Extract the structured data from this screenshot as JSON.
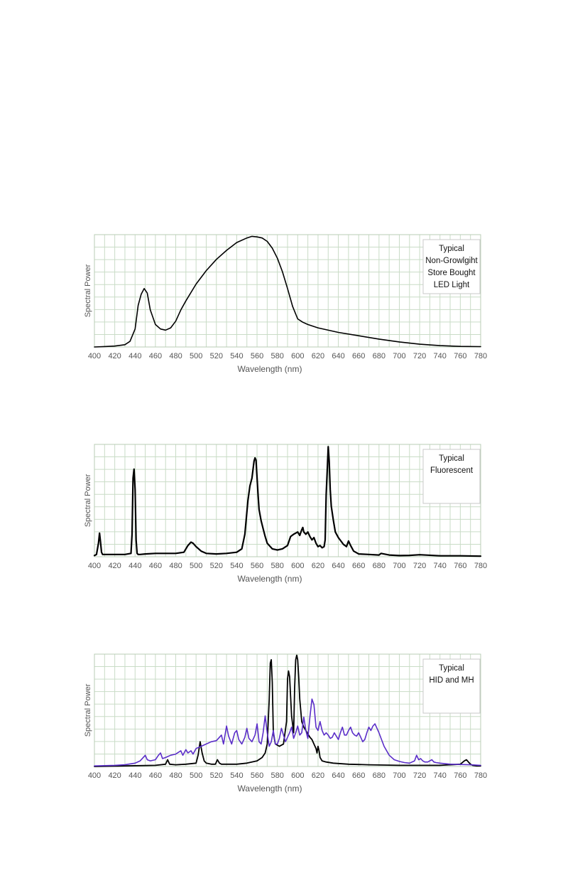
{
  "chart_data": [
    {
      "type": "line",
      "xlabel": "Wavelength (nm)",
      "ylabel": "Spectral Power",
      "xlim": [
        400,
        780
      ],
      "ylim": [
        0,
        1
      ],
      "x_ticks": [
        400,
        420,
        440,
        460,
        480,
        500,
        520,
        540,
        560,
        580,
        600,
        620,
        640,
        660,
        680,
        700,
        720,
        740,
        760,
        780
      ],
      "grid": true,
      "legend_position": "top-right",
      "legend_lines": [
        "Typical",
        "Non-Growlgiht",
        "Store Bought",
        "LED Light"
      ],
      "series": [
        {
          "color": "#000000",
          "x": [
            400,
            410,
            420,
            430,
            435,
            440,
            443,
            446,
            449,
            452,
            455,
            460,
            465,
            470,
            475,
            480,
            485,
            490,
            500,
            510,
            520,
            530,
            540,
            550,
            555,
            560,
            565,
            570,
            575,
            580,
            585,
            590,
            595,
            600,
            605,
            610,
            620,
            640,
            660,
            680,
            700,
            720,
            740,
            760,
            780
          ],
          "values": [
            0,
            0.004,
            0.008,
            0.02,
            0.05,
            0.16,
            0.37,
            0.47,
            0.52,
            0.48,
            0.33,
            0.2,
            0.16,
            0.15,
            0.17,
            0.23,
            0.33,
            0.41,
            0.56,
            0.68,
            0.78,
            0.86,
            0.93,
            0.97,
            0.985,
            0.98,
            0.97,
            0.94,
            0.88,
            0.79,
            0.67,
            0.52,
            0.36,
            0.25,
            0.22,
            0.2,
            0.17,
            0.13,
            0.1,
            0.07,
            0.045,
            0.025,
            0.012,
            0.005,
            0.003
          ]
        }
      ]
    },
    {
      "type": "line",
      "xlabel": "Wavelength (nm)",
      "ylabel": "Spectral Power",
      "xlim": [
        400,
        780
      ],
      "ylim": [
        0,
        1
      ],
      "x_ticks": [
        400,
        420,
        440,
        460,
        480,
        500,
        520,
        540,
        560,
        580,
        600,
        620,
        640,
        660,
        680,
        700,
        720,
        740,
        760,
        780
      ],
      "grid": true,
      "legend_position": "top-right",
      "legend_lines": [
        "Typical",
        "Fluorescent"
      ],
      "series": [
        {
          "color": "#000000",
          "x": [
            400,
            402,
            404,
            405,
            406,
            407,
            408,
            410,
            420,
            430,
            436,
            437,
            438,
            439,
            440,
            441,
            442,
            443,
            445,
            450,
            460,
            470,
            480,
            488,
            492,
            495,
            497,
            500,
            505,
            510,
            520,
            530,
            540,
            545,
            548,
            551,
            553,
            555,
            557,
            558,
            559,
            560,
            561,
            562,
            564,
            566,
            568,
            570,
            575,
            580,
            585,
            590,
            593,
            596,
            598,
            600,
            602,
            604,
            605,
            606,
            608,
            610,
            612,
            614,
            616,
            618,
            620,
            622,
            624,
            626,
            627,
            628,
            629,
            630,
            631,
            632,
            633,
            635,
            637,
            640,
            645,
            648,
            650,
            652,
            655,
            660,
            670,
            680,
            682,
            690,
            700,
            710,
            720,
            740,
            760,
            780
          ],
          "values": [
            0.01,
            0.02,
            0.12,
            0.21,
            0.13,
            0.04,
            0.02,
            0.02,
            0.02,
            0.02,
            0.03,
            0.2,
            0.7,
            0.78,
            0.6,
            0.15,
            0.03,
            0.02,
            0.02,
            0.025,
            0.03,
            0.03,
            0.03,
            0.04,
            0.1,
            0.13,
            0.12,
            0.09,
            0.05,
            0.03,
            0.025,
            0.03,
            0.04,
            0.07,
            0.2,
            0.5,
            0.63,
            0.7,
            0.85,
            0.88,
            0.86,
            0.7,
            0.55,
            0.42,
            0.32,
            0.25,
            0.18,
            0.12,
            0.07,
            0.06,
            0.07,
            0.1,
            0.18,
            0.2,
            0.21,
            0.22,
            0.19,
            0.24,
            0.26,
            0.22,
            0.2,
            0.22,
            0.18,
            0.15,
            0.17,
            0.12,
            0.09,
            0.1,
            0.08,
            0.09,
            0.15,
            0.55,
            0.75,
            0.98,
            0.85,
            0.6,
            0.45,
            0.33,
            0.22,
            0.17,
            0.11,
            0.09,
            0.14,
            0.1,
            0.05,
            0.025,
            0.02,
            0.015,
            0.03,
            0.015,
            0.01,
            0.012,
            0.018,
            0.008,
            0.008,
            0.005
          ]
        }
      ]
    },
    {
      "type": "line",
      "xlabel": "Wavelength (nm)",
      "ylabel": "Spectral Power",
      "xlim": [
        400,
        780
      ],
      "ylim": [
        0,
        1
      ],
      "x_ticks": [
        400,
        420,
        440,
        460,
        480,
        500,
        520,
        540,
        560,
        580,
        600,
        620,
        640,
        660,
        680,
        700,
        720,
        740,
        760,
        780
      ],
      "grid": true,
      "legend_position": "top-right",
      "legend_lines": [
        "Typical",
        "HID and MH"
      ],
      "series": [
        {
          "color": "#000000",
          "x": [
            400,
            430,
            460,
            470,
            472,
            474,
            480,
            490,
            500,
            502,
            504,
            506,
            508,
            510,
            515,
            519,
            521,
            523,
            525,
            540,
            550,
            560,
            565,
            568,
            570,
            572,
            573,
            574,
            575,
            576,
            578,
            582,
            586,
            589,
            590,
            591,
            592,
            594,
            596,
            597,
            598,
            599,
            600,
            601,
            602,
            604,
            606,
            608,
            610,
            612,
            614,
            616,
            618,
            619,
            620,
            621,
            622,
            624,
            628,
            635,
            650,
            670,
            700,
            720,
            740,
            760,
            764,
            766,
            768,
            770,
            772,
            776,
            780
          ],
          "values": [
            0,
            0.005,
            0.01,
            0.02,
            0.06,
            0.02,
            0.015,
            0.02,
            0.03,
            0.1,
            0.22,
            0.12,
            0.05,
            0.03,
            0.02,
            0.02,
            0.06,
            0.03,
            0.02,
            0.02,
            0.03,
            0.05,
            0.08,
            0.12,
            0.2,
            0.6,
            0.92,
            0.95,
            0.75,
            0.3,
            0.2,
            0.18,
            0.2,
            0.4,
            0.78,
            0.85,
            0.8,
            0.45,
            0.3,
            0.7,
            0.95,
            0.99,
            0.95,
            0.8,
            0.6,
            0.4,
            0.35,
            0.32,
            0.29,
            0.26,
            0.24,
            0.2,
            0.16,
            0.12,
            0.18,
            0.14,
            0.08,
            0.05,
            0.04,
            0.03,
            0.02,
            0.015,
            0.01,
            0.01,
            0.01,
            0.02,
            0.05,
            0.06,
            0.04,
            0.02,
            0.01,
            0.005,
            0.005
          ]
        },
        {
          "color": "#5a2ec8",
          "x": [
            400,
            420,
            430,
            440,
            445,
            448,
            450,
            452,
            455,
            460,
            463,
            465,
            467,
            470,
            475,
            480,
            485,
            487,
            490,
            492,
            495,
            497,
            500,
            505,
            510,
            515,
            520,
            525,
            527,
            530,
            532,
            535,
            538,
            540,
            542,
            545,
            548,
            550,
            552,
            555,
            558,
            560,
            562,
            564,
            566,
            568,
            570,
            572,
            574,
            576,
            578,
            580,
            582,
            584,
            586,
            588,
            590,
            592,
            594,
            596,
            598,
            600,
            602,
            604,
            606,
            608,
            610,
            612,
            614,
            616,
            618,
            620,
            622,
            624,
            626,
            628,
            630,
            632,
            634,
            636,
            638,
            640,
            642,
            644,
            646,
            648,
            650,
            652,
            654,
            656,
            658,
            660,
            662,
            664,
            666,
            668,
            670,
            672,
            674,
            676,
            678,
            680,
            685,
            690,
            695,
            700,
            705,
            710,
            715,
            717,
            719,
            721,
            723,
            725,
            728,
            730,
            732,
            734,
            736,
            740,
            745,
            750,
            760,
            770,
            780
          ],
          "values": [
            0.005,
            0.01,
            0.015,
            0.03,
            0.05,
            0.08,
            0.1,
            0.06,
            0.05,
            0.06,
            0.1,
            0.12,
            0.07,
            0.08,
            0.1,
            0.11,
            0.14,
            0.1,
            0.15,
            0.12,
            0.14,
            0.11,
            0.16,
            0.18,
            0.2,
            0.22,
            0.23,
            0.28,
            0.2,
            0.36,
            0.27,
            0.2,
            0.3,
            0.32,
            0.24,
            0.2,
            0.26,
            0.34,
            0.25,
            0.22,
            0.28,
            0.38,
            0.22,
            0.2,
            0.3,
            0.45,
            0.3,
            0.18,
            0.22,
            0.32,
            0.2,
            0.2,
            0.25,
            0.34,
            0.28,
            0.22,
            0.26,
            0.3,
            0.35,
            0.25,
            0.3,
            0.36,
            0.28,
            0.3,
            0.44,
            0.32,
            0.25,
            0.44,
            0.6,
            0.55,
            0.35,
            0.32,
            0.4,
            0.32,
            0.28,
            0.3,
            0.28,
            0.25,
            0.26,
            0.3,
            0.27,
            0.24,
            0.3,
            0.35,
            0.28,
            0.28,
            0.32,
            0.35,
            0.3,
            0.28,
            0.27,
            0.3,
            0.26,
            0.22,
            0.24,
            0.3,
            0.35,
            0.32,
            0.36,
            0.38,
            0.34,
            0.3,
            0.18,
            0.1,
            0.06,
            0.045,
            0.035,
            0.03,
            0.05,
            0.1,
            0.06,
            0.07,
            0.05,
            0.04,
            0.04,
            0.05,
            0.06,
            0.04,
            0.035,
            0.03,
            0.025,
            0.02,
            0.018,
            0.015,
            0.01
          ]
        }
      ]
    }
  ]
}
